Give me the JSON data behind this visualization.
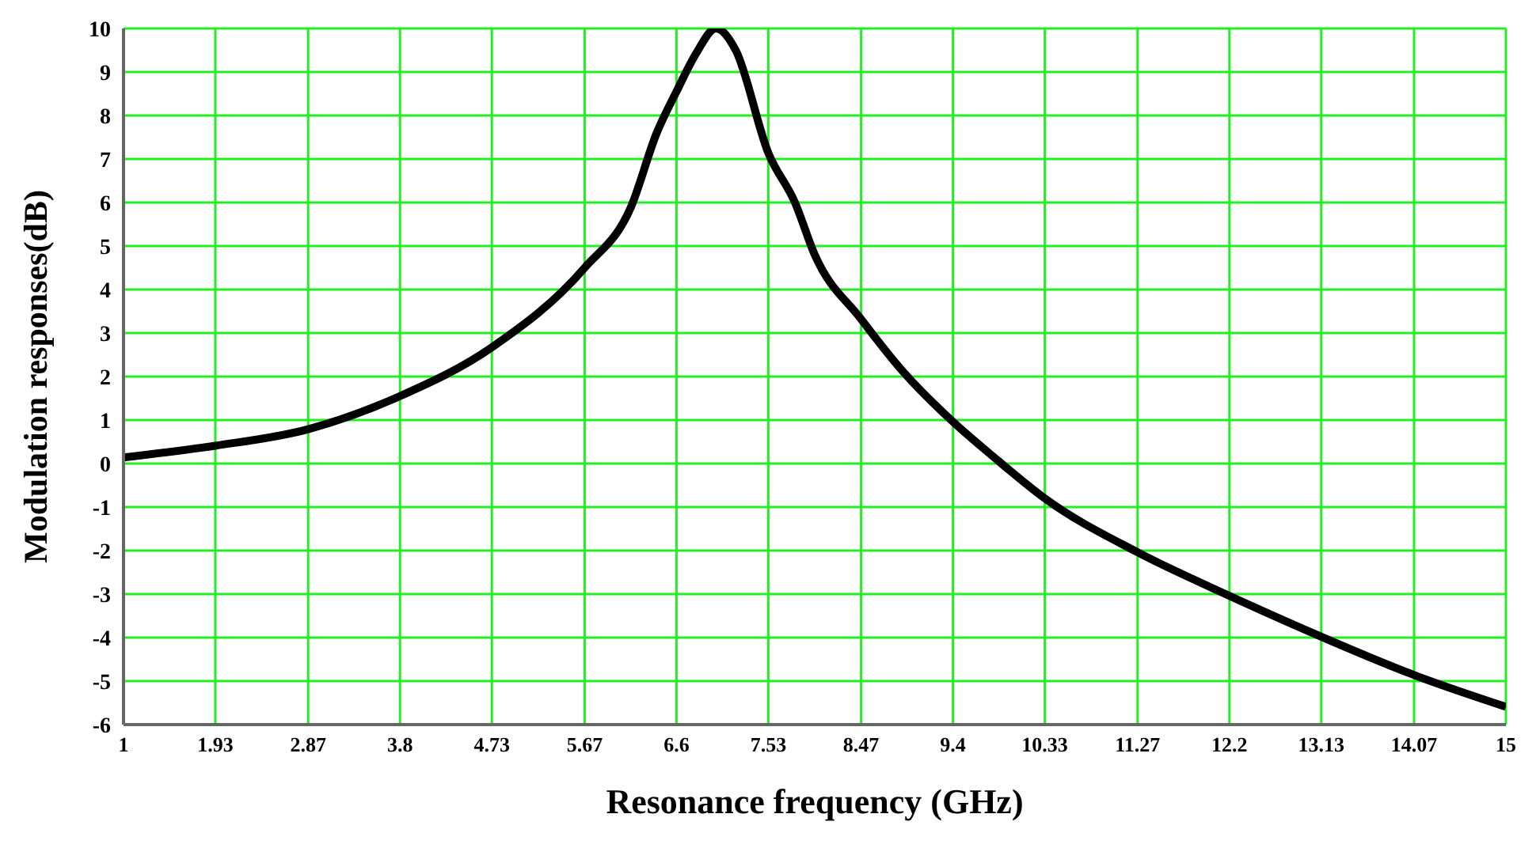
{
  "chart_data": {
    "type": "line",
    "xlabel": "Resonance frequency (GHz)",
    "ylabel": "Modulation responses(dB)",
    "series": [
      {
        "color": "#000000",
        "x": [
          1,
          1.93,
          2.87,
          3.8,
          4.73,
          5.67,
          6.14,
          6.4,
          6.6,
          6.8,
          7.0,
          7.2,
          7.53,
          7.8,
          8.0,
          8.47,
          8.9,
          9.4,
          9.85,
          10.33,
          11.27,
          12.2,
          13.13,
          14.07,
          15
        ],
        "values": [
          0.14,
          0.41,
          0.79,
          1.55,
          2.67,
          4.5,
          5.9,
          7.6,
          8.55,
          9.43,
          10.0,
          9.5,
          7.14,
          6.0,
          4.8,
          3.32,
          2.1,
          0.96,
          0.08,
          -0.8,
          -2.04,
          -3.04,
          -3.98,
          -4.86,
          -5.59
        ]
      }
    ],
    "xlim": [
      1,
      15
    ],
    "xticks": [
      1,
      1.93,
      2.87,
      3.8,
      4.73,
      5.67,
      6.6,
      7.53,
      8.47,
      9.4,
      10.33,
      11.27,
      12.2,
      13.13,
      14.07,
      15
    ],
    "ylim": [
      -6,
      10
    ],
    "yticks": [
      -6,
      -5,
      -4,
      -3,
      -2,
      -1,
      0,
      1,
      2,
      3,
      4,
      5,
      6,
      7,
      8,
      9,
      10
    ],
    "grid": true,
    "marker": "none",
    "line_style": "solid",
    "legend": false
  }
}
